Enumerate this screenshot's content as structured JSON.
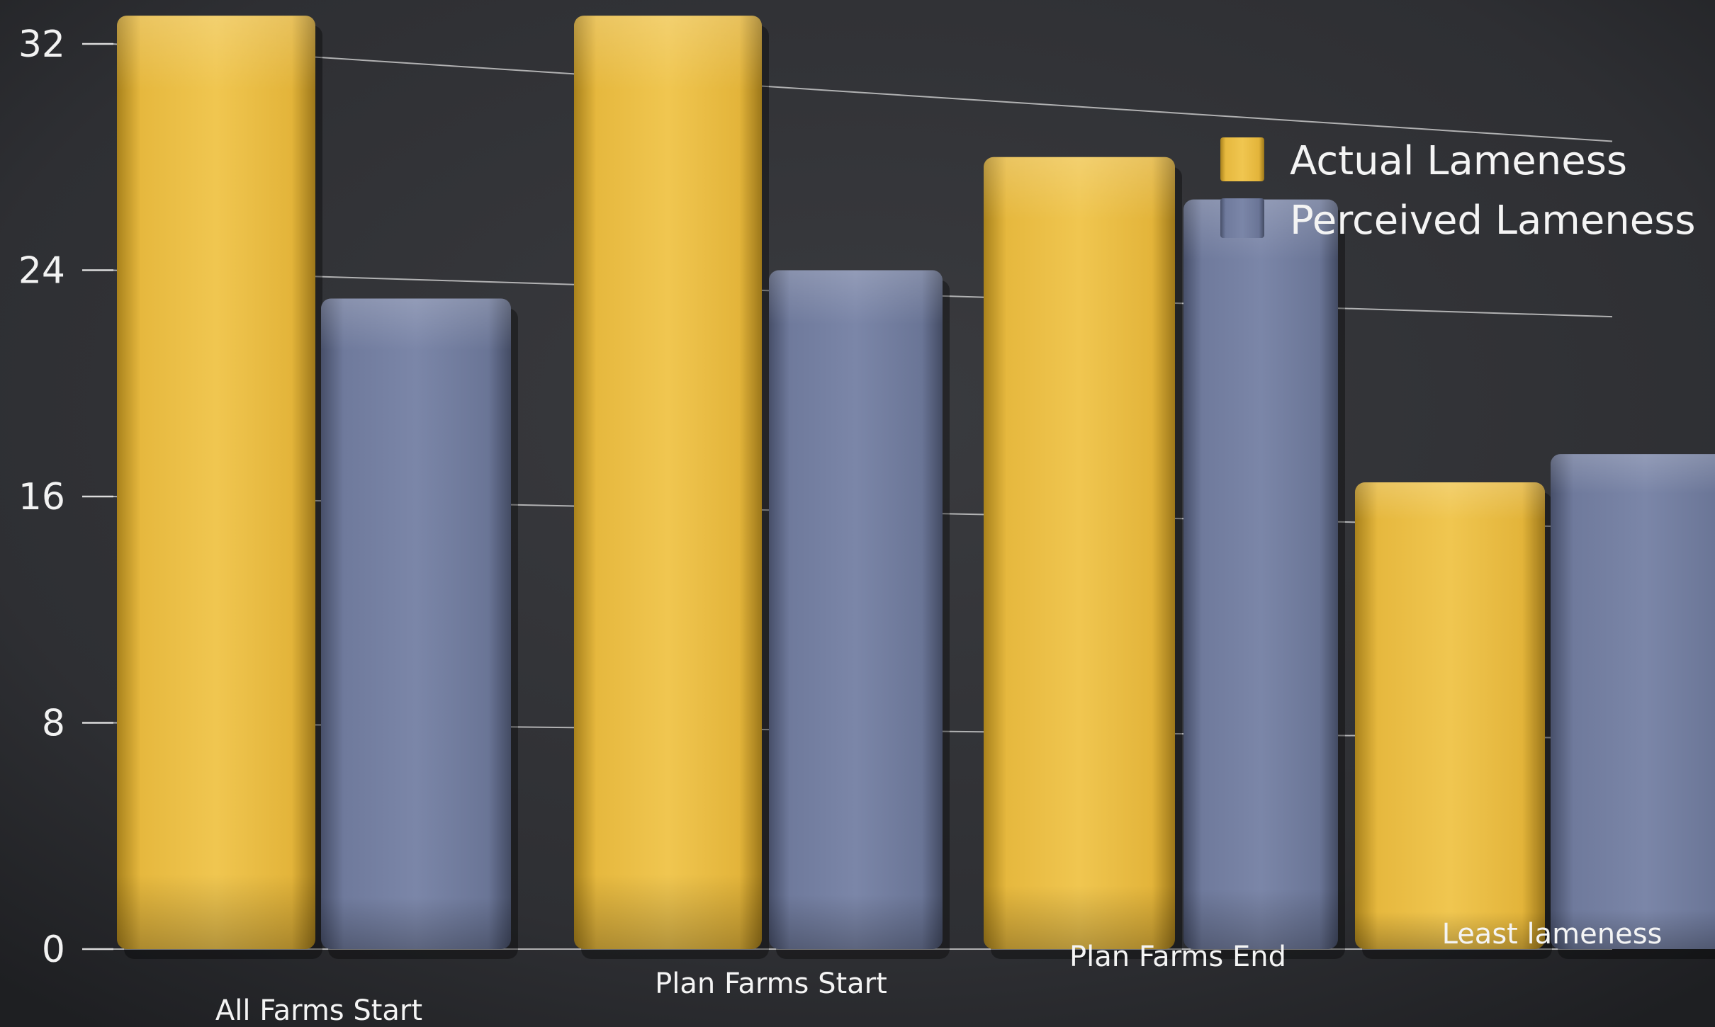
{
  "chart_data": {
    "type": "bar",
    "categories": [
      "All Farms Start",
      "Plan Farms Start",
      "Plan Farms End",
      "Least lameness"
    ],
    "series": [
      {
        "name": "Actual Lameness",
        "values": [
          33,
          33,
          28,
          16.5
        ]
      },
      {
        "name": "Perceived Lameness",
        "values": [
          23,
          24,
          26.5,
          17.5
        ]
      }
    ],
    "ylim": [
      0,
      32
    ],
    "yticks": [
      0,
      8,
      16,
      24,
      32
    ],
    "legend": "top-right",
    "grid": true,
    "colors": {
      "background": "#2c2d30",
      "actual": "#e2b43a",
      "perceived": "#6a7698",
      "grid": "#dcdcdc",
      "text": "#f2f2f2"
    }
  }
}
